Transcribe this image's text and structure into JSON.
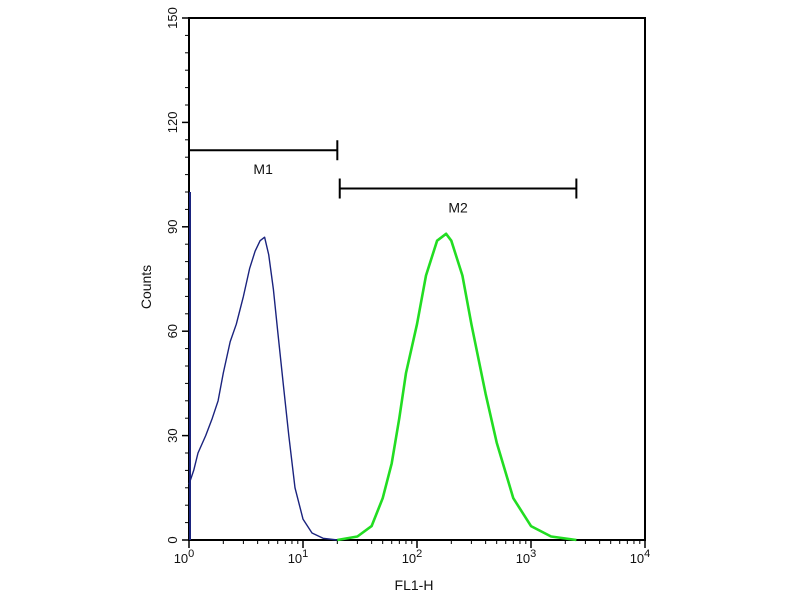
{
  "colors": {
    "background": "#ffffff",
    "axis": "#000000",
    "control": "#1a237e",
    "sample": "#22dd22"
  },
  "chart_data": {
    "type": "line",
    "xlabel": "FL1-H",
    "ylabel": "Counts",
    "xscale": "log",
    "xlim": [
      1,
      10000
    ],
    "ylim": [
      0,
      150
    ],
    "x_ticks": [
      {
        "value": 1,
        "base": "10",
        "exp": "0"
      },
      {
        "value": 10,
        "base": "10",
        "exp": "1"
      },
      {
        "value": 100,
        "base": "10",
        "exp": "2"
      },
      {
        "value": 1000,
        "base": "10",
        "exp": "3"
      },
      {
        "value": 10000,
        "base": "10",
        "exp": "4"
      }
    ],
    "y_ticks": [
      0,
      30,
      60,
      90,
      120,
      150
    ],
    "y_tick_labels": [
      "0",
      "30",
      "60",
      "90",
      "120",
      "150"
    ],
    "markers": [
      {
        "label": "M1",
        "x_start": 1,
        "x_end": 20,
        "y": 112
      },
      {
        "label": "M2",
        "x_start": 21,
        "x_end": 2500,
        "y": 101
      }
    ],
    "series": [
      {
        "color": "#1a237e",
        "x": [
          1.0,
          1.1,
          1.2,
          1.4,
          1.6,
          1.8,
          2.0,
          2.3,
          2.6,
          3.0,
          3.4,
          3.8,
          4.2,
          4.6,
          5.0,
          5.5,
          6.0,
          6.7,
          7.5,
          8.5,
          10,
          12,
          15,
          20
        ],
        "y": [
          16,
          20,
          25,
          30,
          35,
          40,
          48,
          57,
          62,
          70,
          78,
          83,
          86,
          87,
          82,
          72,
          60,
          45,
          30,
          15,
          6,
          2,
          0.5,
          0
        ]
      },
      {
        "color": "#22dd22",
        "x": [
          20,
          30,
          40,
          50,
          60,
          70,
          80,
          100,
          120,
          150,
          180,
          200,
          250,
          300,
          400,
          500,
          700,
          1000,
          1500,
          2500
        ],
        "y": [
          0,
          1,
          4,
          12,
          22,
          35,
          48,
          62,
          76,
          86,
          88,
          86,
          76,
          62,
          42,
          28,
          12,
          4,
          1,
          0
        ]
      }
    ]
  }
}
